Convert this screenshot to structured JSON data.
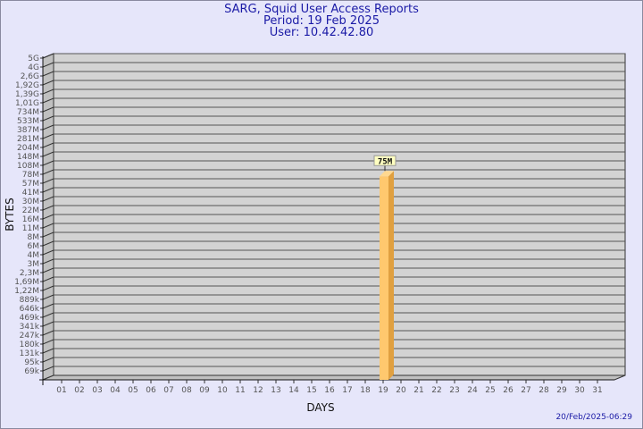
{
  "header": {
    "title": "SARG, Squid User Access Reports",
    "period": "Period: 19 Feb 2025",
    "user": "User: 10.42.42.80"
  },
  "footer": {
    "timestamp": "20/Feb/2025-06:29"
  },
  "colors": {
    "background": "#e6e6fa",
    "plot": "#d3d3d3",
    "bar_front": "#ffc86e",
    "bar_side": "#e0a040",
    "title": "#1a1aa6"
  },
  "chart_data": {
    "type": "bar",
    "title": "SARG, Squid User Access Reports",
    "xlabel": "DAYS",
    "ylabel": "BYTES",
    "yscale": "log-like (labeled ticks)",
    "y_ticks": [
      "5G",
      "4G",
      "2,6G",
      "1,92G",
      "1,39G",
      "1,01G",
      "734M",
      "533M",
      "387M",
      "281M",
      "204M",
      "148M",
      "108M",
      "78M",
      "57M",
      "41M",
      "30M",
      "22M",
      "16M",
      "11M",
      "8M",
      "6M",
      "4M",
      "3M",
      "2,3M",
      "1,69M",
      "1,22M",
      "889k",
      "646k",
      "469k",
      "341k",
      "247k",
      "180k",
      "131k",
      "95k",
      "69k"
    ],
    "categories": [
      "01",
      "02",
      "03",
      "04",
      "05",
      "06",
      "07",
      "08",
      "09",
      "10",
      "11",
      "12",
      "13",
      "14",
      "15",
      "16",
      "17",
      "18",
      "19",
      "20",
      "21",
      "22",
      "23",
      "24",
      "25",
      "26",
      "27",
      "28",
      "29",
      "30",
      "31"
    ],
    "bars": [
      {
        "day": "19",
        "value": 75000000,
        "label": "75M"
      }
    ],
    "grid": true
  }
}
